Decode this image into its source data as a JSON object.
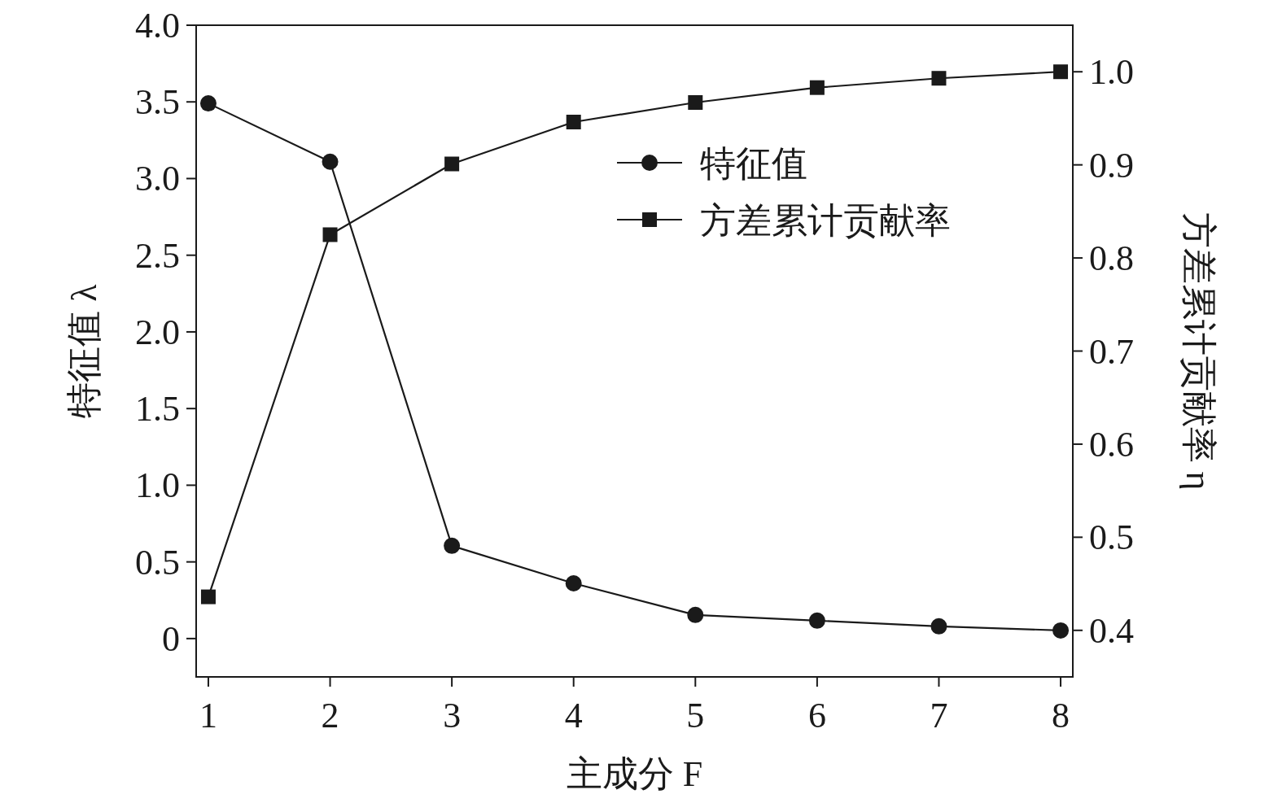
{
  "chart_data": {
    "type": "line",
    "xlabel": "主成分 F",
    "ylabel": "特征值 λ",
    "y2label": "方差累计贡献率 η",
    "x": [
      1,
      2,
      3,
      4,
      5,
      6,
      7,
      8
    ],
    "series": [
      {
        "name": "特征值",
        "color": "#1a1a1a",
        "marker": "circle",
        "values": [
          3.49,
          3.11,
          0.605,
          0.36,
          0.154,
          0.117,
          0.08,
          0.053
        ]
      },
      {
        "name": "方差累计贡献率",
        "color": "#1a1a1a",
        "marker": "square",
        "axis": "y2",
        "values": [
          0.436,
          0.825,
          0.901,
          0.946,
          0.967,
          0.983,
          0.993,
          1.0
        ]
      }
    ],
    "xlim": [
      0.9,
      8.1
    ],
    "xticks": [
      1,
      2,
      3,
      4,
      5,
      6,
      7,
      8
    ],
    "ylim": [
      -0.25,
      4.0
    ],
    "yticks": [
      0,
      {
        "value": 0.5,
        "label": "0.5"
      },
      {
        "value": 1,
        "label": "1.0"
      },
      {
        "value": 1.5,
        "label": "1.5"
      },
      {
        "value": 2,
        "label": "2.0"
      },
      {
        "value": 2.5,
        "label": "2.5"
      },
      {
        "value": 3,
        "label": "3.0"
      },
      {
        "value": 3.5,
        "label": "3.5"
      },
      {
        "value": 4,
        "label": "4.0"
      }
    ],
    "y2lim": [
      0.35,
      1.05
    ],
    "y2ticks": [
      0.4,
      0.5,
      0.6,
      0.7,
      0.8,
      0.9,
      {
        "value": 1,
        "label": "1.0"
      }
    ],
    "grid": false,
    "legend": "top right",
    "line_style": "solid"
  }
}
